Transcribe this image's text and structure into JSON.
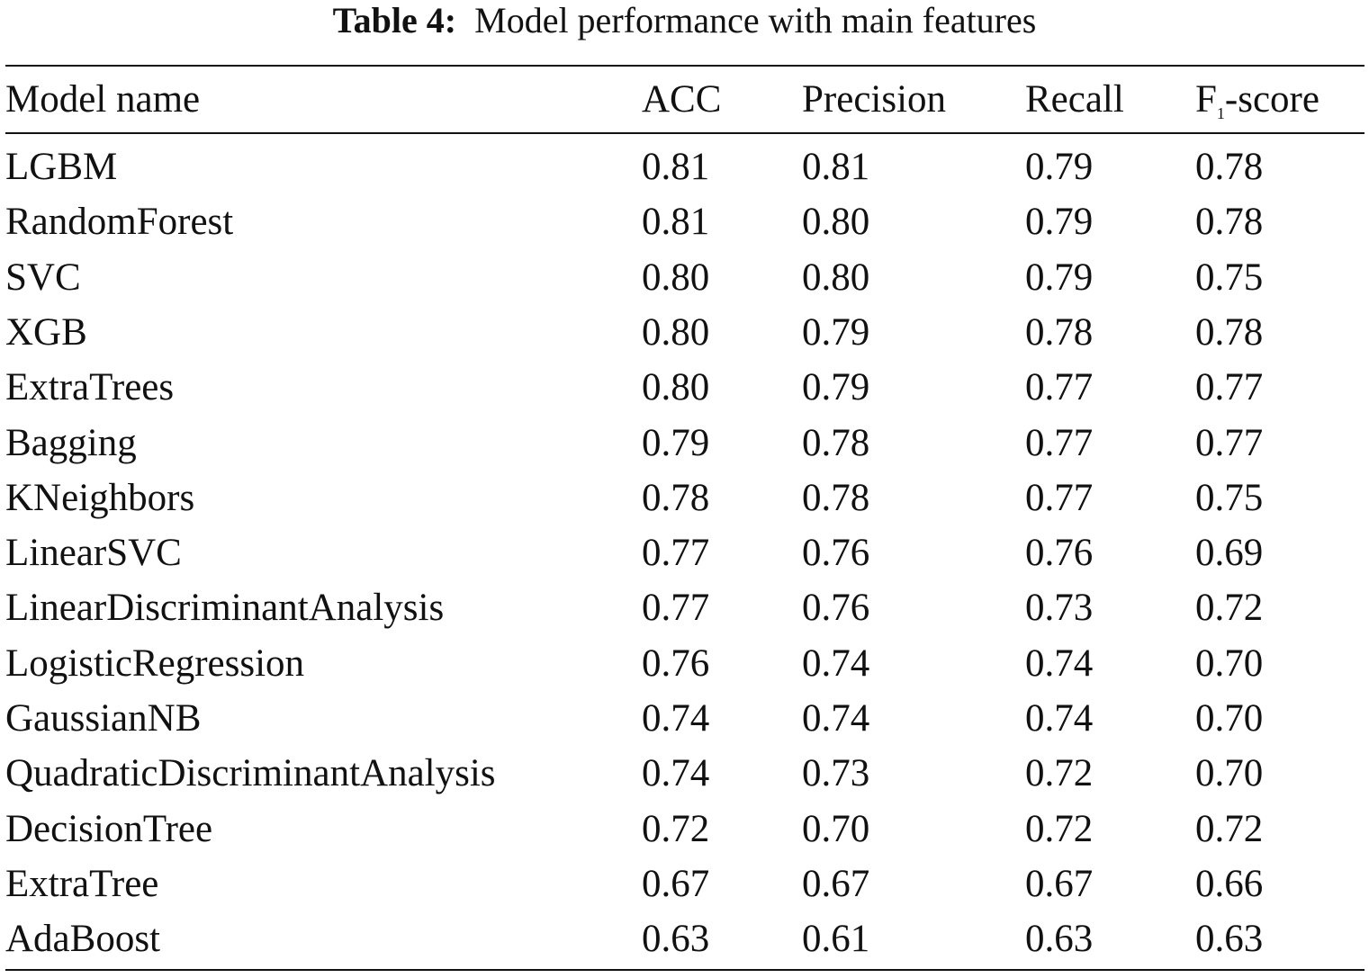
{
  "caption": {
    "label": "Table 4:",
    "text": "Model performance with main features"
  },
  "table": {
    "headers": {
      "model": "Model name",
      "acc": "ACC",
      "precision": "Precision",
      "recall": "Recall",
      "f1_main": "F",
      "f1_sub": "1",
      "f1_suffix": "-score"
    },
    "rows": [
      {
        "model": "LGBM",
        "acc": "0.81",
        "precision": "0.81",
        "recall": "0.79",
        "f1": "0.78"
      },
      {
        "model": "RandomForest",
        "acc": "0.81",
        "precision": "0.80",
        "recall": "0.79",
        "f1": "0.78"
      },
      {
        "model": "SVC",
        "acc": "0.80",
        "precision": "0.80",
        "recall": "0.79",
        "f1": "0.75"
      },
      {
        "model": "XGB",
        "acc": "0.80",
        "precision": "0.79",
        "recall": "0.78",
        "f1": "0.78"
      },
      {
        "model": "ExtraTrees",
        "acc": "0.80",
        "precision": "0.79",
        "recall": "0.77",
        "f1": "0.77"
      },
      {
        "model": "Bagging",
        "acc": "0.79",
        "precision": "0.78",
        "recall": "0.77",
        "f1": "0.77"
      },
      {
        "model": "KNeighbors",
        "acc": "0.78",
        "precision": "0.78",
        "recall": "0.77",
        "f1": "0.75"
      },
      {
        "model": "LinearSVC",
        "acc": "0.77",
        "precision": "0.76",
        "recall": "0.76",
        "f1": "0.69"
      },
      {
        "model": "LinearDiscriminantAnalysis",
        "acc": "0.77",
        "precision": "0.76",
        "recall": "0.73",
        "f1": "0.72"
      },
      {
        "model": "LogisticRegression",
        "acc": "0.76",
        "precision": "0.74",
        "recall": "0.74",
        "f1": "0.70"
      },
      {
        "model": "GaussianNB",
        "acc": "0.74",
        "precision": "0.74",
        "recall": "0.74",
        "f1": "0.70"
      },
      {
        "model": "QuadraticDiscriminantAnalysis",
        "acc": "0.74",
        "precision": "0.73",
        "recall": "0.72",
        "f1": "0.70"
      },
      {
        "model": "DecisionTree",
        "acc": "0.72",
        "precision": "0.70",
        "recall": "0.72",
        "f1": "0.72"
      },
      {
        "model": "ExtraTree",
        "acc": "0.67",
        "precision": "0.67",
        "recall": "0.67",
        "f1": "0.66"
      },
      {
        "model": "AdaBoost",
        "acc": "0.63",
        "precision": "0.61",
        "recall": "0.63",
        "f1": "0.63"
      }
    ]
  }
}
